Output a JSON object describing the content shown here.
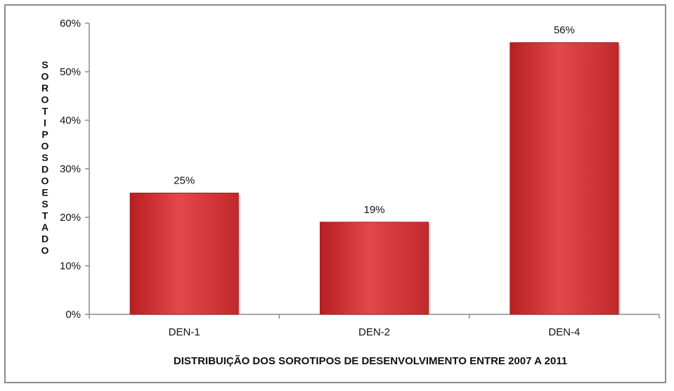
{
  "chart_data": {
    "type": "bar",
    "categories": [
      "DEN-1",
      "DEN-2",
      "DEN-4"
    ],
    "values": [
      25,
      19,
      56
    ],
    "data_labels": [
      "25%",
      "19%",
      "56%"
    ],
    "xlabel": "DISTRIBUIÇÃO DOS SOROTIPOS DE DESENVOLVIMENTO  ENTRE 2007 A 2011",
    "ylabel": "SOROTIPOS DO ESTADO",
    "yticks": [
      "0%",
      "10%",
      "20%",
      "30%",
      "40%",
      "50%",
      "60%"
    ],
    "ylim": [
      0,
      60
    ],
    "grid": false,
    "legend": "none",
    "bar_color": "#d93a3c"
  }
}
